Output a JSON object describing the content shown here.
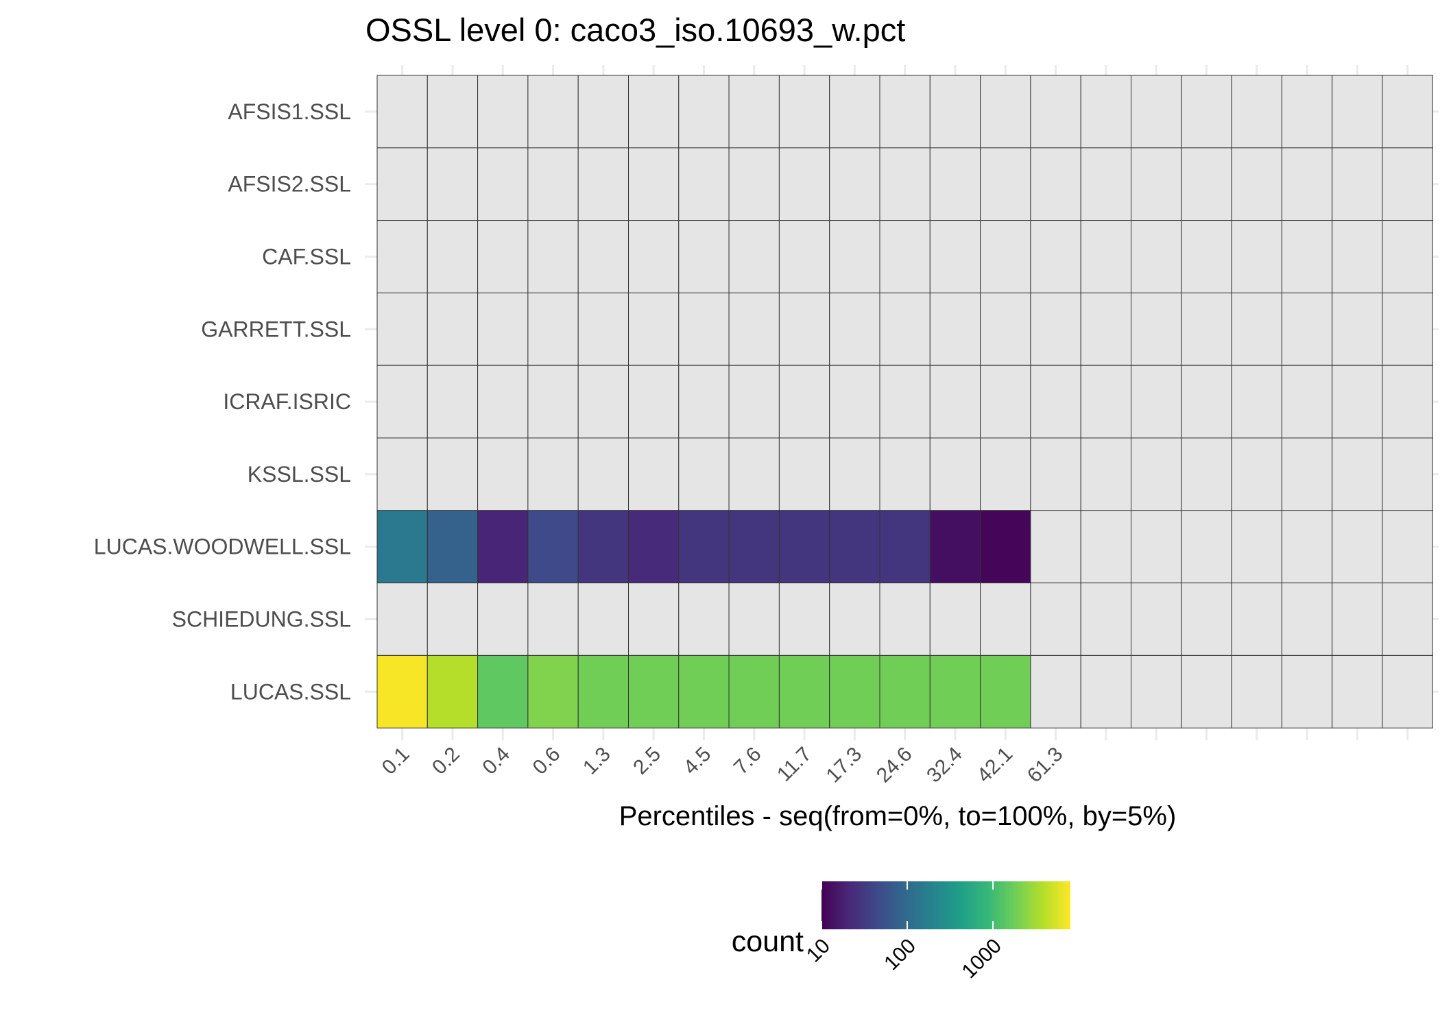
{
  "chart_data": {
    "type": "heatmap",
    "title": "OSSL level 0: caco3_iso.10693_w.pct",
    "xlabel": "Percentiles - seq(from=0%, to=100%, by=5%)",
    "ylabel": "",
    "rows": [
      "AFSIS1.SSL",
      "AFSIS2.SSL",
      "CAF.SSL",
      "GARRETT.SSL",
      "ICRAF.ISRIC",
      "KSSL.SSL",
      "LUCAS.WOODWELL.SSL",
      "SCHIEDUNG.SSL",
      "LUCAS.SSL"
    ],
    "x_tick_labels": [
      "0.1",
      "0.2",
      "0.4",
      "0.6",
      "1.3",
      "2.5",
      "4.5",
      "7.6",
      "11.7",
      "17.3",
      "24.6",
      "32.4",
      "42.1",
      "61.3"
    ],
    "n_columns": 21,
    "counts": [
      [
        null,
        null,
        null,
        null,
        null,
        null,
        null,
        null,
        null,
        null,
        null,
        null,
        null,
        null,
        null,
        null,
        null,
        null,
        null,
        null,
        null
      ],
      [
        null,
        null,
        null,
        null,
        null,
        null,
        null,
        null,
        null,
        null,
        null,
        null,
        null,
        null,
        null,
        null,
        null,
        null,
        null,
        null,
        null
      ],
      [
        null,
        null,
        null,
        null,
        null,
        null,
        null,
        null,
        null,
        null,
        null,
        null,
        null,
        null,
        null,
        null,
        null,
        null,
        null,
        null,
        null
      ],
      [
        null,
        null,
        null,
        null,
        null,
        null,
        null,
        null,
        null,
        null,
        null,
        null,
        null,
        null,
        null,
        null,
        null,
        null,
        null,
        null,
        null
      ],
      [
        null,
        null,
        null,
        null,
        null,
        null,
        null,
        null,
        null,
        null,
        null,
        null,
        null,
        null,
        null,
        null,
        null,
        null,
        null,
        null,
        null
      ],
      [
        null,
        null,
        null,
        null,
        null,
        null,
        null,
        null,
        null,
        null,
        null,
        null,
        null,
        null,
        null,
        null,
        null,
        null,
        null,
        null,
        null
      ],
      [
        150,
        80,
        20,
        45,
        28,
        22,
        28,
        28,
        28,
        28,
        28,
        13,
        11,
        null,
        null,
        null,
        null,
        null,
        null,
        null,
        null
      ],
      [
        null,
        null,
        null,
        null,
        null,
        null,
        null,
        null,
        null,
        null,
        null,
        null,
        null,
        null,
        null,
        null,
        null,
        null,
        null,
        null,
        null
      ],
      [
        7500,
        3800,
        1500,
        2200,
        1850,
        1850,
        1850,
        1850,
        1850,
        1850,
        1850,
        1850,
        1850,
        null,
        null,
        null,
        null,
        null,
        null,
        null,
        null
      ]
    ],
    "color_scale": {
      "name": "viridis",
      "scale": "log10",
      "legend_title": "count",
      "legend_breaks": [
        10,
        100,
        1000
      ],
      "legend_tick_labels": [
        "10",
        "100",
        "1000"
      ],
      "domain": [
        10,
        8000
      ]
    },
    "na_color": "#e5e5e5",
    "grid_color": "#333333"
  }
}
